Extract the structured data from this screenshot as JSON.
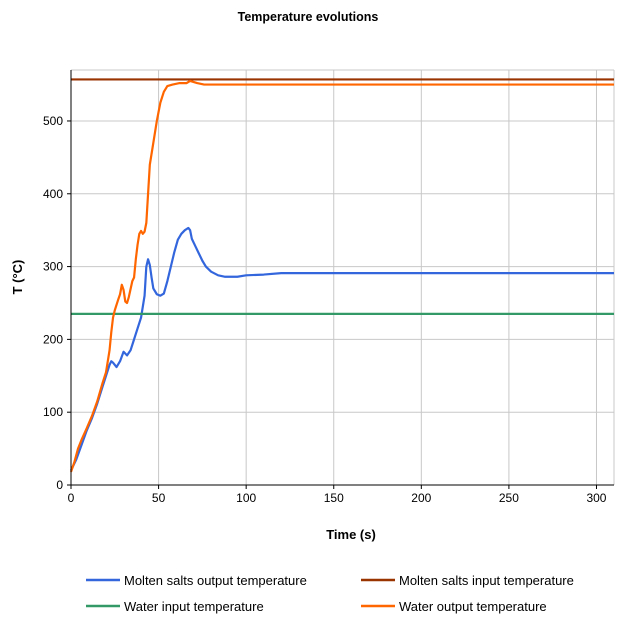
{
  "chart_data": {
    "type": "line",
    "title": "Temperature evolutions",
    "xlabel": "Time (s)",
    "ylabel": "T (°C)",
    "xlim": [
      0,
      310
    ],
    "ylim": [
      0,
      570
    ],
    "xticks": [
      0,
      50,
      100,
      150,
      200,
      250,
      300
    ],
    "yticks": [
      0,
      100,
      200,
      300,
      400,
      500
    ],
    "grid": true,
    "legend_position": "bottom",
    "series": [
      {
        "name": "Molten salts output temperature",
        "color": "#3366dd",
        "points": [
          [
            0,
            20
          ],
          [
            3,
            35
          ],
          [
            6,
            55
          ],
          [
            9,
            75
          ],
          [
            12,
            92
          ],
          [
            15,
            112
          ],
          [
            18,
            135
          ],
          [
            20,
            150
          ],
          [
            22,
            165
          ],
          [
            23,
            170
          ],
          [
            24,
            168
          ],
          [
            26,
            162
          ],
          [
            28,
            170
          ],
          [
            30,
            183
          ],
          [
            32,
            178
          ],
          [
            34,
            185
          ],
          [
            36,
            200
          ],
          [
            38,
            215
          ],
          [
            40,
            230
          ],
          [
            42,
            260
          ],
          [
            43,
            300
          ],
          [
            44,
            310
          ],
          [
            45,
            302
          ],
          [
            46,
            285
          ],
          [
            47,
            270
          ],
          [
            49,
            262
          ],
          [
            51,
            260
          ],
          [
            53,
            263
          ],
          [
            55,
            280
          ],
          [
            57,
            300
          ],
          [
            59,
            320
          ],
          [
            61,
            337
          ],
          [
            63,
            345
          ],
          [
            65,
            350
          ],
          [
            67,
            353
          ],
          [
            68,
            350
          ],
          [
            69,
            338
          ],
          [
            71,
            328
          ],
          [
            73,
            318
          ],
          [
            75,
            308
          ],
          [
            77,
            300
          ],
          [
            80,
            293
          ],
          [
            84,
            288
          ],
          [
            88,
            286
          ],
          [
            95,
            286
          ],
          [
            100,
            288
          ],
          [
            110,
            289
          ],
          [
            120,
            291
          ],
          [
            200,
            291
          ],
          [
            310,
            291
          ]
        ]
      },
      {
        "name": "Molten salts input temperature",
        "color": "#993300",
        "points": [
          [
            0,
            557
          ],
          [
            310,
            557
          ]
        ]
      },
      {
        "name": "Water input temperature",
        "color": "#339966",
        "points": [
          [
            0,
            235
          ],
          [
            310,
            235
          ]
        ]
      },
      {
        "name": "Water output temperature",
        "color": "#ff6600",
        "points": [
          [
            0,
            18
          ],
          [
            2,
            32
          ],
          [
            4,
            50
          ],
          [
            6,
            62
          ],
          [
            9,
            78
          ],
          [
            12,
            95
          ],
          [
            15,
            115
          ],
          [
            18,
            140
          ],
          [
            20,
            155
          ],
          [
            22,
            185
          ],
          [
            23,
            210
          ],
          [
            24,
            230
          ],
          [
            25,
            240
          ],
          [
            27,
            255
          ],
          [
            28,
            262
          ],
          [
            29,
            275
          ],
          [
            30,
            268
          ],
          [
            31,
            252
          ],
          [
            32,
            250
          ],
          [
            33,
            258
          ],
          [
            35,
            280
          ],
          [
            36,
            285
          ],
          [
            37,
            310
          ],
          [
            38,
            330
          ],
          [
            39,
            345
          ],
          [
            40,
            349
          ],
          [
            41,
            345
          ],
          [
            42,
            348
          ],
          [
            43,
            360
          ],
          [
            44,
            400
          ],
          [
            45,
            440
          ],
          [
            47,
            470
          ],
          [
            49,
            500
          ],
          [
            51,
            525
          ],
          [
            53,
            540
          ],
          [
            55,
            548
          ],
          [
            58,
            550
          ],
          [
            62,
            552
          ],
          [
            66,
            552
          ],
          [
            68,
            555
          ],
          [
            72,
            552
          ],
          [
            76,
            550
          ],
          [
            100,
            550
          ],
          [
            200,
            550
          ],
          [
            310,
            550
          ]
        ]
      }
    ]
  }
}
